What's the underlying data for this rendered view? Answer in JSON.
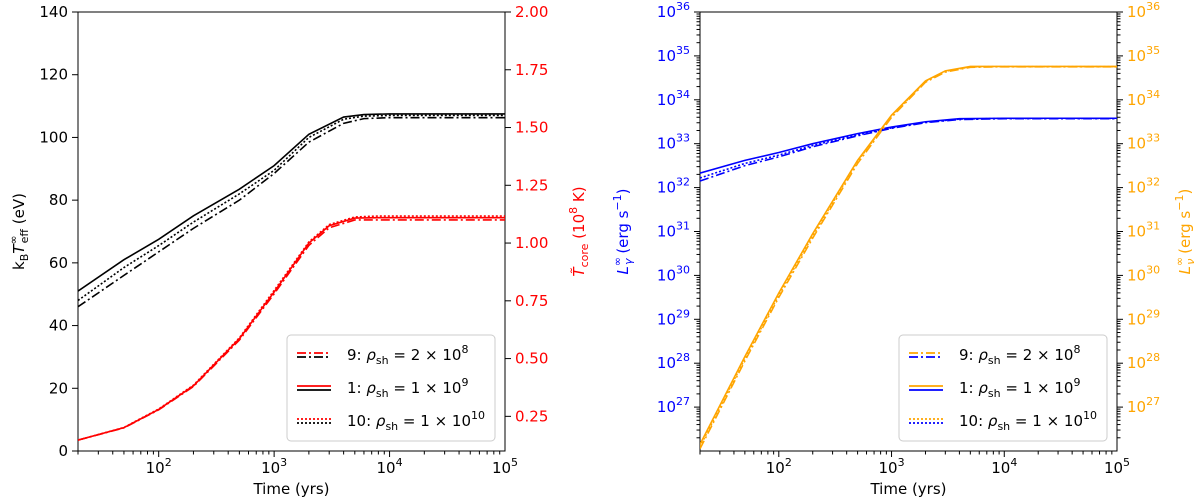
{
  "chart_data": [
    {
      "type": "line",
      "x_scale": "log",
      "xlim": [
        20,
        100000
      ],
      "xlabel": "Time (yrs)",
      "x_ticks": [
        {
          "value": 100,
          "label": "10",
          "exp": "2"
        },
        {
          "value": 1000,
          "label": "10",
          "exp": "3"
        },
        {
          "value": 10000,
          "label": "10",
          "exp": "4"
        },
        {
          "value": 100000,
          "label": "10",
          "exp": "5"
        }
      ],
      "left_axis": {
        "label_main": "k",
        "label_sub1": "B",
        "label_t": "T",
        "label_sup": "∞",
        "label_sub2": "eff",
        "label_unit": " (eV)",
        "ylim": [
          0,
          140
        ],
        "ticks": [
          {
            "value": 0,
            "label": "0"
          },
          {
            "value": 20,
            "label": "20"
          },
          {
            "value": 40,
            "label": "40"
          },
          {
            "value": 60,
            "label": "60"
          },
          {
            "value": 80,
            "label": "80"
          },
          {
            "value": 100,
            "label": "100"
          },
          {
            "value": 120,
            "label": "120"
          },
          {
            "value": 140,
            "label": "140"
          }
        ]
      },
      "right_axis": {
        "label_main": "T̃",
        "label_sub": "core",
        "label_unit": " (10",
        "label_unit_exp": "8",
        "label_unit_end": " K)",
        "ylim": [
          0.1,
          2.0
        ],
        "color": "#ff0000",
        "ticks": [
          {
            "value": 0.25,
            "label": "0.25"
          },
          {
            "value": 0.5,
            "label": "0.50"
          },
          {
            "value": 0.75,
            "label": "0.75"
          },
          {
            "value": 1.0,
            "label": "1.00"
          },
          {
            "value": 1.25,
            "label": "1.25"
          },
          {
            "value": 1.5,
            "label": "1.50"
          },
          {
            "value": 1.75,
            "label": "1.75"
          },
          {
            "value": 2.0,
            "label": "2.00"
          }
        ]
      },
      "series": [
        {
          "model": "9",
          "axis": "left",
          "color": "#000000",
          "dash": "dashdot",
          "x": [
            20,
            50,
            100,
            200,
            500,
            1000,
            2000,
            4000,
            6000,
            10000,
            100000
          ],
          "y": [
            46,
            56,
            63.5,
            71,
            80,
            88.5,
            98.5,
            104.5,
            106,
            106.3,
            106.3
          ]
        },
        {
          "model": "1",
          "axis": "left",
          "color": "#000000",
          "dash": "solid",
          "x": [
            20,
            50,
            100,
            200,
            500,
            1000,
            2000,
            4000,
            6000,
            10000,
            100000
          ],
          "y": [
            51,
            61,
            67.5,
            75,
            83.5,
            91,
            101,
            106.5,
            107.3,
            107.5,
            107.5
          ]
        },
        {
          "model": "10",
          "axis": "left",
          "color": "#000000",
          "dash": "dotted",
          "x": [
            20,
            50,
            100,
            200,
            500,
            1000,
            2000,
            4000,
            6000,
            10000,
            100000
          ],
          "y": [
            48,
            58.5,
            65.5,
            73,
            82,
            89.5,
            100,
            105.8,
            106.8,
            107,
            107
          ]
        },
        {
          "model": "9",
          "axis": "right",
          "color": "#ff0000",
          "dash": "dashdot",
          "x": [
            20,
            50,
            100,
            200,
            500,
            1000,
            2000,
            3000,
            5000,
            8000,
            100000
          ],
          "y": [
            0.147,
            0.2,
            0.278,
            0.379,
            0.58,
            0.78,
            0.99,
            1.066,
            1.1,
            1.1,
            1.1
          ]
        },
        {
          "model": "1",
          "axis": "right",
          "color": "#ff0000",
          "dash": "solid",
          "x": [
            20,
            50,
            100,
            200,
            500,
            1000,
            2000,
            3000,
            5000,
            8000,
            100000
          ],
          "y": [
            0.147,
            0.201,
            0.28,
            0.382,
            0.586,
            0.788,
            1.0,
            1.075,
            1.108,
            1.11,
            1.11
          ]
        },
        {
          "model": "10",
          "axis": "right",
          "color": "#ff0000",
          "dash": "dotted",
          "x": [
            20,
            50,
            100,
            200,
            500,
            1000,
            2000,
            3000,
            5000,
            8000,
            100000
          ],
          "y": [
            0.147,
            0.202,
            0.282,
            0.385,
            0.59,
            0.795,
            1.005,
            1.08,
            1.113,
            1.117,
            1.117
          ]
        }
      ],
      "legend": {
        "placement": "lower-right",
        "colors": [
          "#ff0000",
          "#000000"
        ],
        "entries": [
          {
            "dash": "dashdot",
            "num": "9",
            "rho": "ρ",
            "sub": "sh",
            "eq": " = 2 × 10",
            "exp": "8"
          },
          {
            "dash": "solid",
            "num": "1",
            "rho": "ρ",
            "sub": "sh",
            "eq": " = 1 × 10",
            "exp": "9"
          },
          {
            "dash": "dotted",
            "num": "10",
            "rho": "ρ",
            "sub": "sh",
            "eq": " = 1 × 10",
            "exp": "10"
          }
        ]
      }
    },
    {
      "type": "line",
      "x_scale": "log",
      "xlim": [
        20,
        100000
      ],
      "xlabel": "Time (yrs)",
      "x_ticks": [
        {
          "value": 100,
          "label": "10",
          "exp": "2"
        },
        {
          "value": 1000,
          "label": "10",
          "exp": "3"
        },
        {
          "value": 10000,
          "label": "10",
          "exp": "4"
        },
        {
          "value": 100000,
          "label": "10",
          "exp": "5"
        }
      ],
      "left_axis": {
        "label_main": "L",
        "label_sup": "∞",
        "label_sub": "γ",
        "label_unit": " (erg s",
        "label_unit_exp": "−1",
        "label_unit_end": ")",
        "color": "#0000ff",
        "y_scale": "log",
        "ylim": [
          1e+26,
          1e+36
        ],
        "ticks": [
          {
            "value": 1e+27,
            "label": "10",
            "exp": "27"
          },
          {
            "value": 1e+28,
            "label": "10",
            "exp": "28"
          },
          {
            "value": 1e+29,
            "label": "10",
            "exp": "29"
          },
          {
            "value": 1e+30,
            "label": "10",
            "exp": "30"
          },
          {
            "value": 1e+31,
            "label": "10",
            "exp": "31"
          },
          {
            "value": 1e+32,
            "label": "10",
            "exp": "32"
          },
          {
            "value": 1e+33,
            "label": "10",
            "exp": "33"
          },
          {
            "value": 1e+34,
            "label": "10",
            "exp": "34"
          },
          {
            "value": 1e+35,
            "label": "10",
            "exp": "35"
          },
          {
            "value": 1e+36,
            "label": "10",
            "exp": "36"
          }
        ]
      },
      "right_axis": {
        "label_main": "L",
        "label_sup": "∞",
        "label_sub": "ν",
        "label_unit": " (erg s",
        "label_unit_exp": "−1",
        "label_unit_end": ")",
        "color": "#ffa500",
        "y_scale": "log",
        "ylim": [
          1e+26,
          1e+36
        ],
        "ticks": [
          {
            "value": 1e+27,
            "label": "10",
            "exp": "27"
          },
          {
            "value": 1e+28,
            "label": "10",
            "exp": "28"
          },
          {
            "value": 1e+29,
            "label": "10",
            "exp": "29"
          },
          {
            "value": 1e+30,
            "label": "10",
            "exp": "30"
          },
          {
            "value": 1e+31,
            "label": "10",
            "exp": "31"
          },
          {
            "value": 1e+32,
            "label": "10",
            "exp": "32"
          },
          {
            "value": 1e+33,
            "label": "10",
            "exp": "33"
          },
          {
            "value": 1e+34,
            "label": "10",
            "exp": "34"
          },
          {
            "value": 1e+35,
            "label": "10",
            "exp": "35"
          },
          {
            "value": 1e+36,
            "label": "10",
            "exp": "36"
          }
        ]
      },
      "series": [
        {
          "model": "9",
          "kind": "photon",
          "color": "#0000ff",
          "dash": "dashdot",
          "x": [
            20,
            50,
            100,
            200,
            500,
            1000,
            2000,
            4000,
            10000,
            100000
          ],
          "log10_y": [
            32.15,
            32.5,
            32.7,
            32.93,
            33.18,
            33.35,
            33.48,
            33.55,
            33.57,
            33.57
          ]
        },
        {
          "model": "1",
          "kind": "photon",
          "color": "#0000ff",
          "dash": "solid",
          "x": [
            20,
            50,
            100,
            200,
            500,
            1000,
            2000,
            4000,
            10000,
            100000
          ],
          "log10_y": [
            32.33,
            32.62,
            32.8,
            33.0,
            33.23,
            33.38,
            33.5,
            33.57,
            33.58,
            33.58
          ]
        },
        {
          "model": "10",
          "kind": "photon",
          "color": "#0000ff",
          "dash": "dotted",
          "x": [
            20,
            50,
            100,
            200,
            500,
            1000,
            2000,
            4000,
            10000,
            100000
          ],
          "log10_y": [
            32.22,
            32.55,
            32.74,
            32.96,
            33.2,
            33.36,
            33.49,
            33.56,
            33.575,
            33.575
          ]
        },
        {
          "model": "9",
          "kind": "neutrino",
          "color": "#ffa500",
          "dash": "dashdot",
          "x": [
            20,
            50,
            100,
            200,
            500,
            1000,
            2000,
            3000,
            5000,
            8000,
            100000
          ],
          "log10_y": [
            26.05,
            28.05,
            29.5,
            30.85,
            32.55,
            33.6,
            34.4,
            34.63,
            34.74,
            34.75,
            34.75
          ]
        },
        {
          "model": "1",
          "kind": "neutrino",
          "color": "#ffa500",
          "dash": "solid",
          "x": [
            20,
            50,
            100,
            200,
            500,
            1000,
            2000,
            3000,
            5000,
            8000,
            100000
          ],
          "log10_y": [
            26.15,
            28.15,
            29.6,
            30.95,
            32.62,
            33.65,
            34.43,
            34.66,
            34.76,
            34.76,
            34.76
          ]
        },
        {
          "model": "10",
          "kind": "neutrino",
          "color": "#ffa500",
          "dash": "dotted",
          "x": [
            20,
            50,
            100,
            200,
            500,
            1000,
            2000,
            3000,
            5000,
            8000,
            100000
          ],
          "log10_y": [
            26.1,
            28.1,
            29.55,
            30.9,
            32.6,
            33.63,
            34.42,
            34.65,
            34.75,
            34.755,
            34.755
          ]
        }
      ],
      "legend": {
        "placement": "lower-right",
        "colors": [
          "#ffa500",
          "#0000ff"
        ],
        "entries": [
          {
            "dash": "dashdot",
            "num": "9",
            "rho": "ρ",
            "sub": "sh",
            "eq": " = 2 × 10",
            "exp": "8"
          },
          {
            "dash": "solid",
            "num": "1",
            "rho": "ρ",
            "sub": "sh",
            "eq": " = 1 × 10",
            "exp": "9"
          },
          {
            "dash": "dotted",
            "num": "10",
            "rho": "ρ",
            "sub": "sh",
            "eq": " = 1 × 10",
            "exp": "10"
          }
        ]
      }
    }
  ]
}
